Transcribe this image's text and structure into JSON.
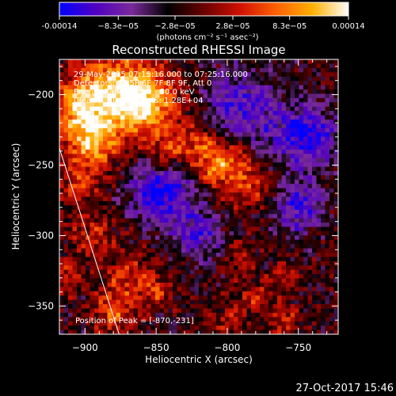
{
  "colorbar": {
    "tick_labels": [
      "-0.00014",
      "−8.3e−05",
      "−2.8e−05",
      "2.8e−05",
      "8.3e−05",
      "0.00014"
    ],
    "tick_values": [
      -0.00014,
      -8.3e-05,
      -2.8e-05,
      2.8e-05,
      8.3e-05,
      0.00014
    ],
    "range": [
      -0.00014,
      0.00014
    ],
    "unit_label": "(photons cm⁻² s⁻¹ asec⁻²)",
    "colormap": [
      "#0000ff",
      "#5000c0",
      "#7a2a9a",
      "#000000",
      "#6a0000",
      "#d01000",
      "#ff6000",
      "#ffb000",
      "#ffffff"
    ]
  },
  "chart_data": {
    "type": "heatmap",
    "title": "Reconstructed RHESSI Image",
    "xlabel": "Heliocentric X (arcsec)",
    "ylabel": "Heliocentric Y (arcsec)",
    "xlim": [
      -918,
      -722
    ],
    "ylim": [
      -370,
      -175
    ],
    "x_ticks": [
      -900,
      -850,
      -800,
      -750
    ],
    "y_ticks": [
      -200,
      -250,
      -300,
      -350
    ],
    "annotations": [
      "29-May-2015 07:15:16.000 to 07:25:16.000",
      "Detectors: 3F 5F 6F 7F 8F 9F, Att 0",
      "Energy Range: 25.0 - 50.0 keV",
      "Clean      Total counts: 1.28E+04"
    ],
    "peak_label": "Position of Peak = [-870,-231]",
    "peak": [
      -870,
      -231
    ],
    "limb_line": [
      [
        -918,
        -238
      ],
      [
        -876,
        -370
      ]
    ]
  },
  "footer": {
    "timestamp": "27-Oct-2017 15:46"
  }
}
